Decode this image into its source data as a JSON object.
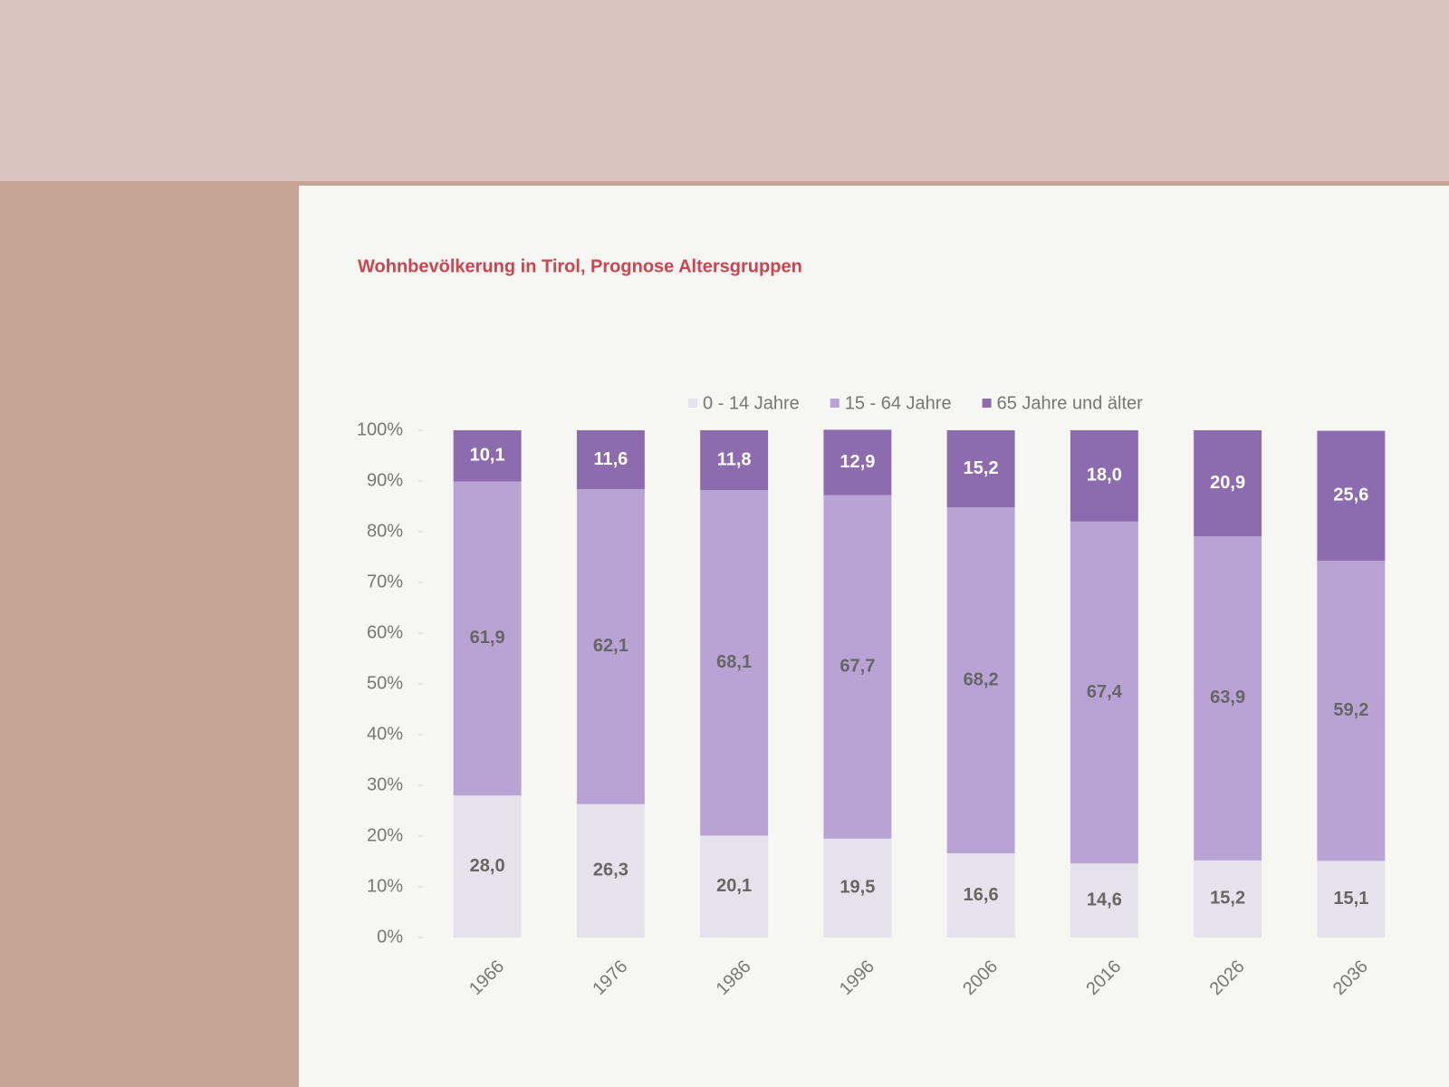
{
  "chart_data": {
    "type": "stacked_bar",
    "title": "Wohnbevölkerung in Tirol, Prognose Altersgruppen",
    "categories": [
      "1966",
      "1976",
      "1986",
      "1996",
      "2006",
      "2016",
      "2026",
      "2036"
    ],
    "series": [
      {
        "name": "0 - 14 Jahre",
        "color": "#e6e2ec",
        "values": [
          28.0,
          26.3,
          20.1,
          19.5,
          16.6,
          14.6,
          15.2,
          15.1
        ],
        "value_labels": [
          "28,0",
          "26,3",
          "20,1",
          "19,5",
          "16,6",
          "14,6",
          "15,2",
          "15,1"
        ]
      },
      {
        "name": "15 - 64 Jahre",
        "color": "#b9a2d4",
        "values": [
          61.9,
          62.1,
          68.1,
          67.7,
          68.2,
          67.4,
          63.9,
          59.2
        ],
        "value_labels": [
          "61,9",
          "62,1",
          "68,1",
          "67,7",
          "68,2",
          "67,4",
          "63,9",
          "59,2"
        ]
      },
      {
        "name": "65 Jahre und älter",
        "color": "#8c6cae",
        "values": [
          10.1,
          11.6,
          11.8,
          12.9,
          15.2,
          18.0,
          20.9,
          25.6
        ],
        "value_labels": [
          "10,1",
          "11,6",
          "11,8",
          "12,9",
          "15,2",
          "18,0",
          "20,9",
          "25,6"
        ]
      }
    ],
    "ylim": [
      0,
      100
    ],
    "yticks": [
      {
        "value": 0,
        "label": "0%"
      },
      {
        "value": 10,
        "label": "10%"
      },
      {
        "value": 20,
        "label": "20%"
      },
      {
        "value": 30,
        "label": "30%"
      },
      {
        "value": 40,
        "label": "40%"
      },
      {
        "value": 50,
        "label": "50%"
      },
      {
        "value": 60,
        "label": "60%"
      },
      {
        "value": 70,
        "label": "70%"
      },
      {
        "value": 80,
        "label": "80%"
      },
      {
        "value": 90,
        "label": "90%"
      },
      {
        "value": 100,
        "label": "100%"
      }
    ]
  }
}
